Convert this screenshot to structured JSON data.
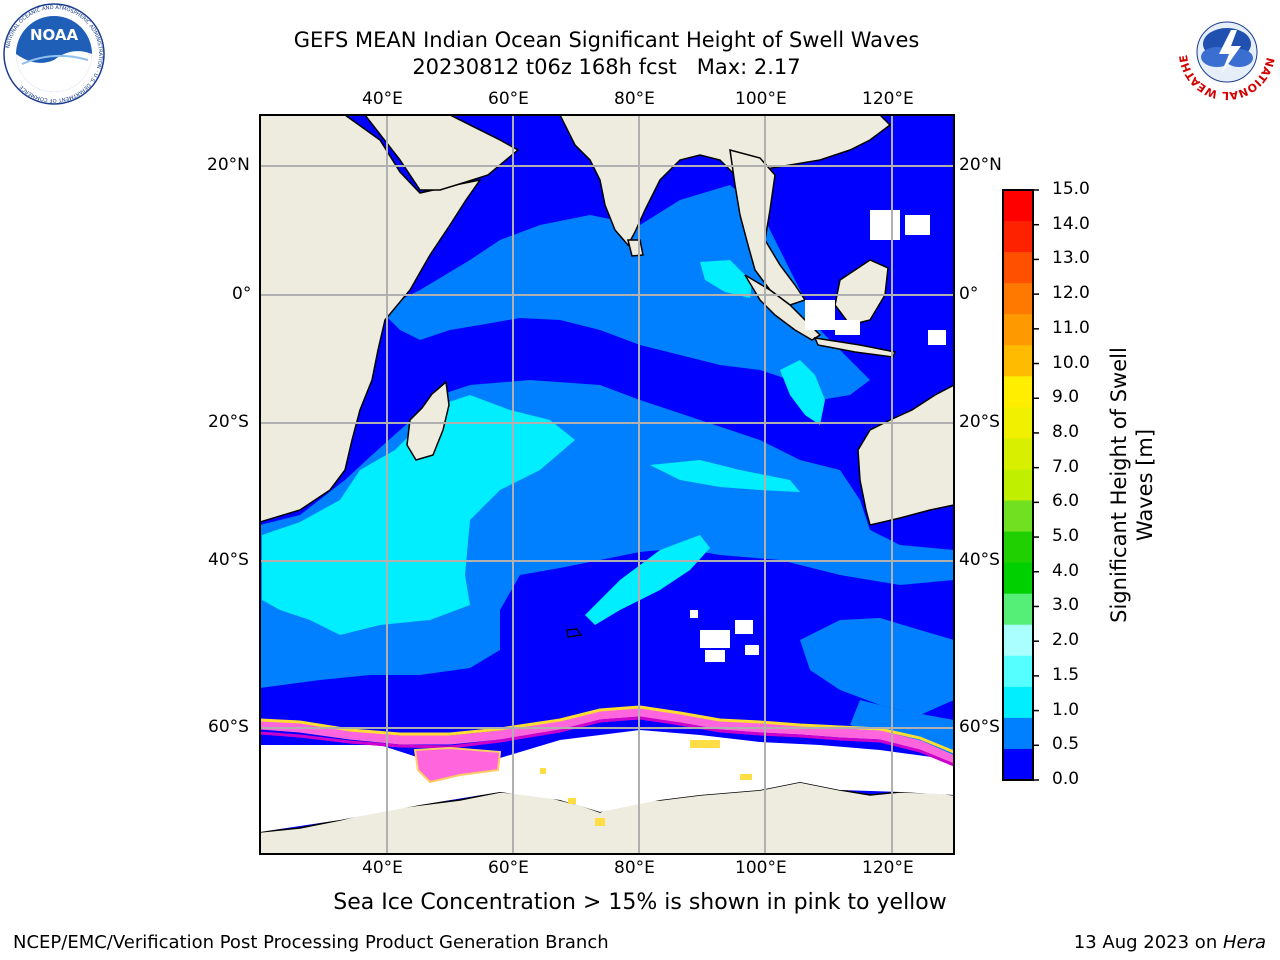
{
  "title_line1": "GEFS MEAN Indian Ocean Significant Height of Swell Waves",
  "title_line2": "20230812 t06z 168h fcst   Max: 2.17",
  "logo_left": "NOAA",
  "logo_left_ring": "NATIONAL OCEANIC AND ATMOSPHERIC ADMINISTRATION · U.S. DEPARTMENT OF COMMERCE",
  "logo_right_ring": "NATIONAL WEATHER SERVICE",
  "lon_ticks": [
    "40°E",
    "60°E",
    "80°E",
    "100°E",
    "120°E"
  ],
  "lat_ticks": [
    "20°N",
    "0°",
    "20°S",
    "40°S",
    "60°S"
  ],
  "colorbar": {
    "label_line1": "Significant Height of Swell",
    "label_line2": "Waves [m]",
    "ticks": [
      "15.0",
      "14.0",
      "13.0",
      "12.0",
      "11.0",
      "10.0",
      "9.0",
      "8.0",
      "7.0",
      "6.0",
      "5.0",
      "4.0",
      "3.0",
      "2.0",
      "1.5",
      "1.0",
      "0.5",
      "0.0"
    ],
    "colors_top_to_bottom": [
      "#ff0000",
      "#ff2200",
      "#ff5000",
      "#ff7800",
      "#ff9900",
      "#ffbb00",
      "#ffee00",
      "#f0f000",
      "#d8f000",
      "#c0f000",
      "#70e020",
      "#20d000",
      "#00d000",
      "#55ee77",
      "#aaffff",
      "#55ffff",
      "#00eeff",
      "#0080ff",
      "#0000ff"
    ]
  },
  "ice_note": "Sea Ice Concentration > 15% is shown in pink to yellow",
  "footer_left": "NCEP/EMC/Verification Post Processing Product Generation Branch",
  "footer_date": "13 Aug 2023 on ",
  "footer_host": "Hera"
}
